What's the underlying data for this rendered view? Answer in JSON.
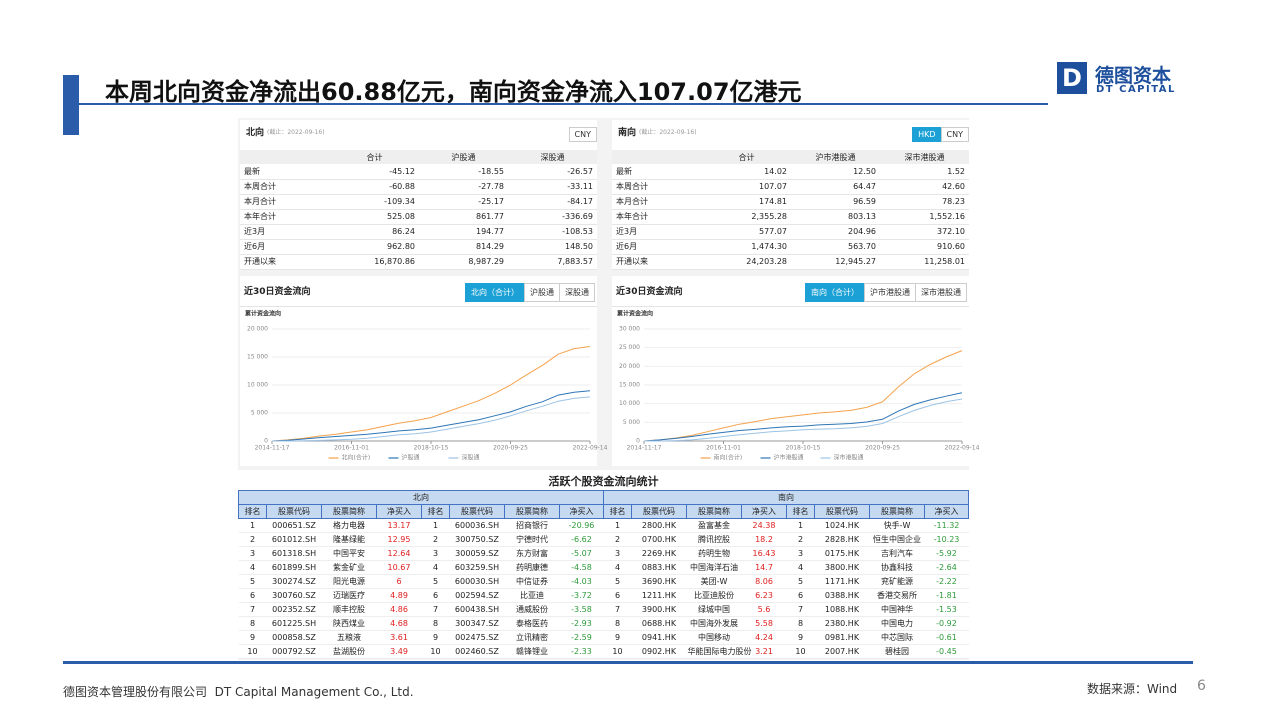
{
  "header": {
    "title": "本周北向资金净流出60.88亿元，南向资金净流入107.07亿港元"
  },
  "logo": {
    "name": "德图资本",
    "en": "DT CAPITAL"
  },
  "north": {
    "title": "北向",
    "date": "(截止：2022-09-16)",
    "currency": [
      "CNY"
    ],
    "columns": [
      "合计",
      "沪股通",
      "深股通"
    ],
    "rows": [
      {
        "label": "最新",
        "values": [
          "-45.12",
          "-18.55",
          "-26.57"
        ]
      },
      {
        "label": "本周合计",
        "values": [
          "-60.88",
          "-27.78",
          "-33.11"
        ]
      },
      {
        "label": "本月合计",
        "values": [
          "-109.34",
          "-25.17",
          "-84.17"
        ]
      },
      {
        "label": "本年合计",
        "values": [
          "525.08",
          "861.77",
          "-336.69"
        ]
      },
      {
        "label": "近3月",
        "values": [
          "86.24",
          "194.77",
          "-108.53"
        ]
      },
      {
        "label": "近6月",
        "values": [
          "962.80",
          "814.29",
          "148.50"
        ]
      },
      {
        "label": "开通以来",
        "values": [
          "16,870.86",
          "8,987.29",
          "7,883.57"
        ]
      }
    ],
    "flow": {
      "title": "近30日资金流向",
      "tabs": [
        "北向（合计）",
        "沪股通",
        "深股通"
      ]
    }
  },
  "south": {
    "title": "南向",
    "date": "(截止：2022-09-16)",
    "currency": [
      "HKD",
      "CNY"
    ],
    "columns": [
      "合计",
      "沪市港股通",
      "深市港股通"
    ],
    "rows": [
      {
        "label": "最新",
        "values": [
          "14.02",
          "12.50",
          "1.52"
        ]
      },
      {
        "label": "本周合计",
        "values": [
          "107.07",
          "64.47",
          "42.60"
        ]
      },
      {
        "label": "本月合计",
        "values": [
          "174.81",
          "96.59",
          "78.23"
        ]
      },
      {
        "label": "本年合计",
        "values": [
          "2,355.28",
          "803.13",
          "1,552.16"
        ]
      },
      {
        "label": "近3月",
        "values": [
          "577.07",
          "204.96",
          "372.10"
        ]
      },
      {
        "label": "近6月",
        "values": [
          "1,474.30",
          "563.70",
          "910.60"
        ]
      },
      {
        "label": "开通以来",
        "values": [
          "24,203.28",
          "12,945.27",
          "11,258.01"
        ]
      }
    ],
    "flow": {
      "title": "近30日资金流向",
      "tabs": [
        "南向（合计）",
        "沪市港股通",
        "深市港股通"
      ]
    }
  },
  "chart_data": [
    {
      "type": "line",
      "title": "累计资金流向",
      "categories": [
        "2014-11-17",
        null,
        null,
        null,
        null,
        "2016-11-01",
        null,
        null,
        null,
        null,
        "2018-10-15",
        null,
        null,
        null,
        null,
        "2020-09-25",
        null,
        null,
        null,
        null,
        "2022-09-14"
      ],
      "ylim": [
        0,
        20000
      ],
      "yticks": [
        0,
        {
          "value": 5000,
          "label": "5 000"
        },
        {
          "value": 10000,
          "label": "10 000"
        },
        {
          "value": 15000,
          "label": "15 000"
        },
        {
          "value": 20000,
          "label": "20 000"
        }
      ],
      "grid": true,
      "legend": "bottom",
      "series": [
        {
          "name": "北向(合计)",
          "color": "#f4a24c",
          "values": [
            0,
            200,
            500,
            900,
            1200,
            1600,
            2000,
            2600,
            3200,
            3600,
            4200,
            5200,
            6200,
            7200,
            8500,
            10000,
            11800,
            13500,
            15500,
            16500,
            16870
          ]
        },
        {
          "name": "沪股通",
          "color": "#2e75b6",
          "values": [
            0,
            150,
            350,
            600,
            800,
            1000,
            1200,
            1500,
            1800,
            2000,
            2300,
            2800,
            3300,
            3800,
            4500,
            5200,
            6200,
            7000,
            8200,
            8700,
            8987
          ]
        },
        {
          "name": "深股通",
          "color": "#9dc3e6",
          "values": [
            0,
            0,
            50,
            100,
            200,
            300,
            500,
            800,
            1100,
            1300,
            1600,
            2100,
            2600,
            3100,
            3700,
            4500,
            5400,
            6200,
            7100,
            7600,
            7883
          ]
        }
      ]
    },
    {
      "type": "line",
      "title": "累计资金流向",
      "categories": [
        "2014-11-17",
        null,
        null,
        null,
        null,
        "2016-11-01",
        null,
        null,
        null,
        null,
        "2018-10-15",
        null,
        null,
        null,
        null,
        "2020-09-25",
        null,
        null,
        null,
        null,
        "2022-09-14"
      ],
      "ylim": [
        0,
        30000
      ],
      "yticks": [
        0,
        {
          "value": 5000,
          "label": "5 000"
        },
        {
          "value": 10000,
          "label": "10 000"
        },
        {
          "value": 15000,
          "label": "15 000"
        },
        {
          "value": 20000,
          "label": "20 000"
        },
        {
          "value": 25000,
          "label": "25 000"
        },
        {
          "value": 30000,
          "label": "30 000"
        }
      ],
      "grid": true,
      "legend": "bottom",
      "series": [
        {
          "name": "南向(合计)",
          "color": "#f4a24c",
          "values": [
            0,
            300,
            800,
            1500,
            2500,
            3500,
            4500,
            5200,
            6000,
            6500,
            7000,
            7500,
            7800,
            8200,
            9000,
            10500,
            14500,
            18000,
            20500,
            22500,
            24203
          ]
        },
        {
          "name": "沪市港股通",
          "color": "#2e75b6",
          "values": [
            0,
            300,
            700,
            1200,
            1800,
            2300,
            2800,
            3100,
            3500,
            3800,
            4000,
            4300,
            4500,
            4700,
            5100,
            5800,
            8000,
            9800,
            11000,
            12000,
            12945
          ]
        },
        {
          "name": "深市港股通",
          "color": "#9dc3e6",
          "values": [
            0,
            0,
            100,
            300,
            700,
            1200,
            1700,
            2100,
            2500,
            2700,
            3000,
            3200,
            3300,
            3500,
            3900,
            4700,
            6500,
            8200,
            9500,
            10500,
            11258
          ]
        }
      ]
    }
  ],
  "active": {
    "title": "活跃个股资金流向统计",
    "groups": [
      "北向",
      "南向"
    ],
    "columns": [
      "排名",
      "股票代码",
      "股票简称",
      "净买入",
      "排名",
      "股票代码",
      "股票简称",
      "净买入",
      "排名",
      "股票代码",
      "股票简称",
      "净买入",
      "排名",
      "股票代码",
      "股票简称",
      "净买入"
    ],
    "rows": [
      [
        1,
        "000651.SZ",
        "格力电器",
        13.17,
        1,
        "600036.SH",
        "招商银行",
        -20.96,
        1,
        "2800.HK",
        "盈富基金",
        24.38,
        1,
        "1024.HK",
        "快手-W",
        -11.32
      ],
      [
        2,
        "601012.SH",
        "隆基绿能",
        12.95,
        2,
        "300750.SZ",
        "宁德时代",
        -6.62,
        2,
        "0700.HK",
        "腾讯控股",
        18.2,
        2,
        "2828.HK",
        "恒生中国企业",
        -10.23
      ],
      [
        3,
        "601318.SH",
        "中国平安",
        12.64,
        3,
        "300059.SZ",
        "东方财富",
        -5.07,
        3,
        "2269.HK",
        "药明生物",
        16.43,
        3,
        "0175.HK",
        "吉利汽车",
        -5.92
      ],
      [
        4,
        "601899.SH",
        "紫金矿业",
        10.67,
        4,
        "603259.SH",
        "药明康德",
        -4.58,
        4,
        "0883.HK",
        "中国海洋石油",
        14.7,
        4,
        "3800.HK",
        "协鑫科技",
        -2.64
      ],
      [
        5,
        "300274.SZ",
        "阳光电源",
        6,
        5,
        "600030.SH",
        "中信证券",
        -4.03,
        5,
        "3690.HK",
        "美团-W",
        8.06,
        5,
        "1171.HK",
        "兖矿能源",
        -2.22
      ],
      [
        6,
        "300760.SZ",
        "迈瑞医疗",
        4.89,
        6,
        "002594.SZ",
        "比亚迪",
        -3.72,
        6,
        "1211.HK",
        "比亚迪股份",
        6.23,
        6,
        "0388.HK",
        "香港交易所",
        -1.81
      ],
      [
        7,
        "002352.SZ",
        "顺丰控股",
        4.86,
        7,
        "600438.SH",
        "通威股份",
        -3.58,
        7,
        "3900.HK",
        "绿城中国",
        5.6,
        7,
        "1088.HK",
        "中国神华",
        -1.53
      ],
      [
        8,
        "601225.SH",
        "陕西煤业",
        4.68,
        8,
        "300347.SZ",
        "泰格医药",
        -2.93,
        8,
        "0688.HK",
        "中国海外发展",
        5.58,
        8,
        "2380.HK",
        "中国电力",
        -0.92
      ],
      [
        9,
        "000858.SZ",
        "五粮液",
        3.61,
        9,
        "002475.SZ",
        "立讯精密",
        -2.59,
        9,
        "0941.HK",
        "中国移动",
        4.24,
        9,
        "0981.HK",
        "中芯国际",
        -0.61
      ],
      [
        10,
        "000792.SZ",
        "盐湖股份",
        3.49,
        10,
        "002460.SZ",
        "赣锋锂业",
        -2.33,
        10,
        "0902.HK",
        "华能国际电力股份",
        3.21,
        10,
        "2007.HK",
        "碧桂园",
        -0.45
      ]
    ]
  },
  "footer": {
    "company": "德图资本管理股份有限公司  DT Capital Management Co., Ltd.",
    "source": "数据来源：Wind",
    "page": "6"
  }
}
